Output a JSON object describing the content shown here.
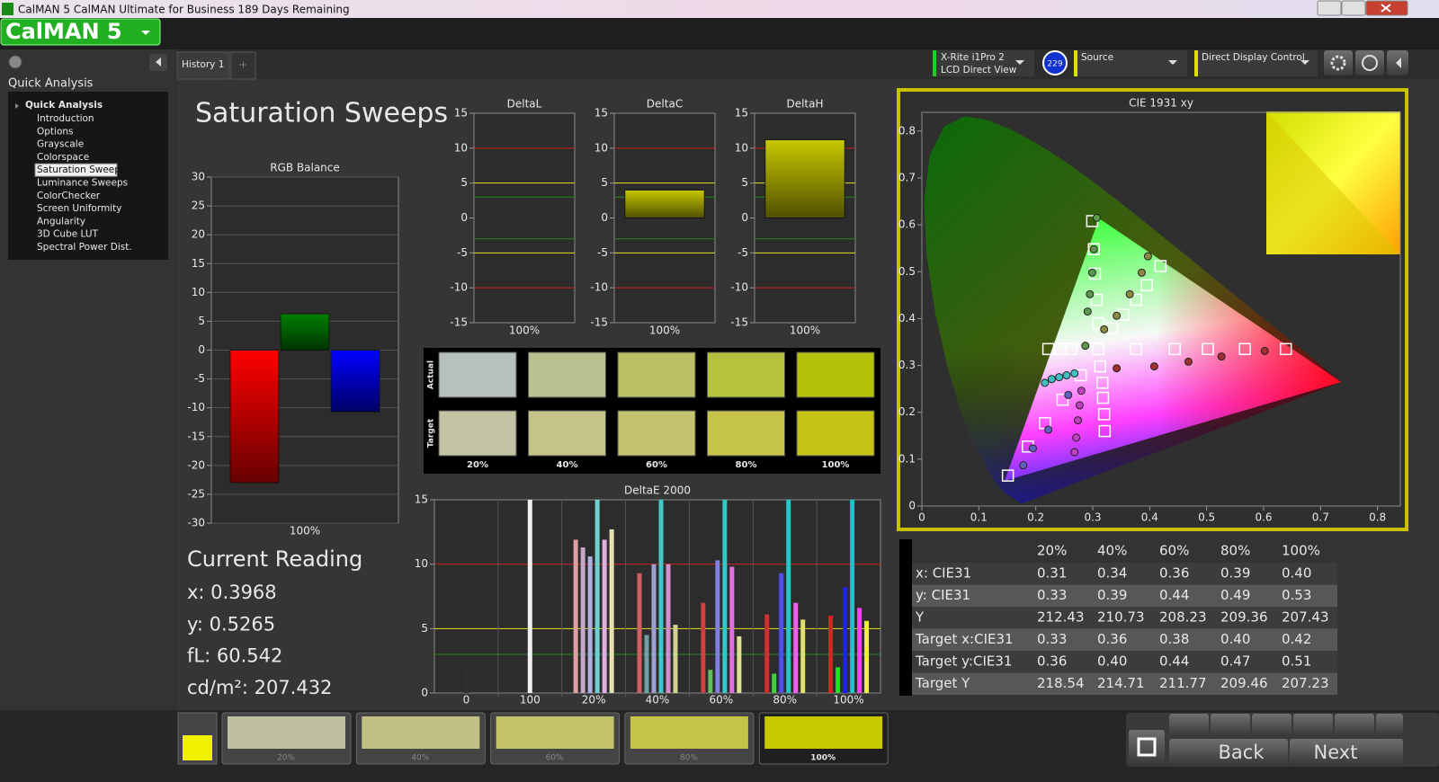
{
  "window": {
    "title": "CalMAN 5 CalMAN Ultimate for Business 189 Days Remaining",
    "logo": "CalMAN 5"
  },
  "sidebar": {
    "heading": "Quick Analysis",
    "tree_root": "Quick Analysis",
    "items": [
      "Introduction",
      "Options",
      "Grayscale",
      "Colorspace",
      "Saturation Sweeps",
      "Luminance Sweeps",
      "ColorChecker",
      "Screen Uniformity",
      "Angularity",
      "3D Cube LUT",
      "Spectral Power Dist."
    ],
    "selected": 4
  },
  "tabs": [
    "History 1"
  ],
  "toolbar": {
    "meter": "X-Rite i1Pro 2",
    "meter_mode": "LCD Direct View",
    "meter_badge": "229",
    "source": "Source",
    "display": "Direct Display Control"
  },
  "page_title": "Saturation Sweeps",
  "chart_data": [
    {
      "type": "bar",
      "title": "RGB Balance",
      "categories": [
        "100%"
      ],
      "series": [
        {
          "color": "#ff0000",
          "values": [
            -23
          ]
        },
        {
          "color": "#008000",
          "values": [
            6.3
          ]
        },
        {
          "color": "#0000ff",
          "values": [
            -10.7
          ]
        }
      ],
      "ylim": [
        -30,
        30
      ],
      "yticks": [
        -30,
        -25,
        -20,
        -15,
        -10,
        -5,
        0,
        5,
        10,
        15,
        20,
        25,
        30
      ],
      "grid": true
    },
    {
      "type": "bar",
      "title": "DeltaL",
      "categories": [
        "100%"
      ],
      "values": [
        0
      ],
      "color": "#c8c800",
      "ylim": [
        -15,
        15
      ],
      "yticks": [
        -15,
        -10,
        -5,
        0,
        5,
        10,
        15
      ],
      "grid": false,
      "ref_lines": [
        {
          "value": 10,
          "color": "#d02020"
        },
        {
          "value": -10,
          "color": "#d02020"
        },
        {
          "value": 5,
          "color": "#e0e020"
        },
        {
          "value": -5,
          "color": "#e0e020"
        },
        {
          "value": 3,
          "color": "#208a20"
        },
        {
          "value": -3,
          "color": "#208a20"
        }
      ]
    },
    {
      "type": "bar",
      "title": "DeltaC",
      "categories": [
        "100%"
      ],
      "values": [
        4
      ],
      "color": "#c8c800",
      "ylim": [
        -15,
        15
      ],
      "yticks": [
        -15,
        -10,
        -5,
        0,
        5,
        10,
        15
      ],
      "grid": false,
      "ref_lines": [
        {
          "value": 10,
          "color": "#d02020"
        },
        {
          "value": -10,
          "color": "#d02020"
        },
        {
          "value": 5,
          "color": "#e0e020"
        },
        {
          "value": -5,
          "color": "#e0e020"
        },
        {
          "value": 3,
          "color": "#208a20"
        },
        {
          "value": -3,
          "color": "#208a20"
        }
      ]
    },
    {
      "type": "bar",
      "title": "DeltaH",
      "categories": [
        "100%"
      ],
      "values": [
        11.2
      ],
      "color": "#c8c800",
      "ylim": [
        -15,
        15
      ],
      "yticks": [
        -15,
        -10,
        -5,
        0,
        5,
        10,
        15
      ],
      "grid": false,
      "ref_lines": [
        {
          "value": 10,
          "color": "#d02020"
        },
        {
          "value": -10,
          "color": "#d02020"
        },
        {
          "value": 5,
          "color": "#e0e020"
        },
        {
          "value": -5,
          "color": "#e0e020"
        },
        {
          "value": 3,
          "color": "#208a20"
        },
        {
          "value": -3,
          "color": "#208a20"
        }
      ]
    },
    {
      "type": "grouped_bar",
      "title": "DeltaE 2000",
      "categories": [
        "0",
        "100",
        "20%",
        "40%",
        "60%",
        "80%",
        "100%"
      ],
      "values": [
        [
          2
        ],
        [
          15
        ],
        [
          11.9,
          11.3,
          10.6,
          15,
          11.9,
          12.7
        ],
        [
          9.3,
          4.5,
          10,
          15,
          10,
          5.3
        ],
        [
          7,
          1.8,
          10.3,
          15,
          9.8,
          4.4
        ],
        [
          6.1,
          1.5,
          9.3,
          15,
          7,
          5.7
        ],
        [
          6,
          2,
          8.2,
          15,
          6.6,
          5.6
        ]
      ],
      "colors": [
        [
          "#303030"
        ],
        [
          "#f0f0f0"
        ],
        [
          "#e0a0a0",
          "#c8a8c8",
          "#b0b0e0",
          "#70d0d0",
          "#e0b0e0",
          "#e8e0b0"
        ],
        [
          "#d06060",
          "#70a0a0",
          "#a0a0d0",
          "#40c8c8",
          "#d090d0",
          "#d0d090"
        ],
        [
          "#d04040",
          "#60c060",
          "#8080e0",
          "#30c8c8",
          "#e070e0",
          "#e0e090"
        ],
        [
          "#d03030",
          "#40d040",
          "#5050f0",
          "#20c8c8",
          "#f060f0",
          "#e0e070"
        ],
        [
          "#e02020",
          "#20e020",
          "#2020ff",
          "#10c8c8",
          "#ff40ff",
          "#f0f040"
        ]
      ],
      "ylim": [
        0,
        15
      ],
      "yticks": [
        0,
        5,
        10,
        15
      ],
      "ref_lines": [
        {
          "value": 10,
          "color": "#d02020"
        },
        {
          "value": 5,
          "color": "#e0e020"
        },
        {
          "value": 3,
          "color": "#208a20"
        }
      ]
    },
    {
      "type": "scatter",
      "title": "CIE 1931 xy",
      "xlim": [
        0,
        0.84
      ],
      "ylim": [
        0,
        0.84
      ],
      "xticks": [
        0,
        0.1,
        0.2,
        0.3,
        0.4,
        0.5,
        0.6,
        0.7,
        0.8
      ],
      "yticks": [
        0,
        0.1,
        0.2,
        0.3,
        0.4,
        0.5,
        0.6,
        0.7,
        0.8
      ],
      "series": [
        {
          "marker": "square",
          "color": "#ffffff",
          "x": [
            0.222,
            0.243,
            0.262,
            0.31,
            0.376,
            0.444,
            0.502,
            0.567,
            0.639,
            0.299,
            0.302,
            0.304,
            0.307,
            0.31,
            0.419,
            0.395,
            0.376,
            0.354,
            0.334,
            0.151,
            0.186,
            0.216,
            0.247,
            0.279,
            0.321,
            0.32,
            0.318,
            0.317,
            0.313
          ],
          "y": [
            0.335,
            0.335,
            0.335,
            0.335,
            0.335,
            0.335,
            0.335,
            0.335,
            0.335,
            0.608,
            0.548,
            0.496,
            0.44,
            0.39,
            0.512,
            0.471,
            0.44,
            0.408,
            0.379,
            0.065,
            0.127,
            0.177,
            0.227,
            0.279,
            0.16,
            0.196,
            0.231,
            0.263,
            0.298
          ]
        },
        {
          "marker": "circle",
          "color": "#5a9a4a",
          "x": [
            0.307,
            0.302,
            0.299,
            0.295,
            0.291,
            0.287
          ],
          "y": [
            0.615,
            0.548,
            0.498,
            0.452,
            0.415,
            0.342
          ]
        },
        {
          "marker": "circle",
          "color": "#8a8a40",
          "x": [
            0.397,
            0.386,
            0.365,
            0.342,
            0.32
          ],
          "y": [
            0.533,
            0.498,
            0.452,
            0.406,
            0.377
          ]
        },
        {
          "marker": "circle",
          "color": "#a03030",
          "x": [
            0.342,
            0.408,
            0.468,
            0.526,
            0.602
          ],
          "y": [
            0.294,
            0.298,
            0.308,
            0.319,
            0.331
          ]
        },
        {
          "marker": "circle",
          "color": "#6060c0",
          "x": [
            0.178,
            0.195,
            0.222,
            0.257
          ],
          "y": [
            0.087,
            0.123,
            0.163,
            0.237
          ]
        },
        {
          "marker": "circle",
          "color": "#c040c0",
          "x": [
            0.268,
            0.271,
            0.274,
            0.277,
            0.28
          ],
          "y": [
            0.115,
            0.146,
            0.183,
            0.215,
            0.246
          ]
        },
        {
          "marker": "circle",
          "color": "#40c0c0",
          "x": [
            0.216,
            0.228,
            0.241,
            0.254,
            0.268
          ],
          "y": [
            0.263,
            0.271,
            0.275,
            0.279,
            0.283
          ]
        }
      ]
    }
  ],
  "swatches": {
    "row_labels": [
      "Actual",
      "Target"
    ],
    "columns": [
      "20%",
      "40%",
      "60%",
      "80%",
      "100%"
    ],
    "actual_colors": [
      "#b8bfbf",
      "#b8c190",
      "#bac064",
      "#b5c23c",
      "#b3c20a"
    ],
    "target_colors": [
      "#c2c3a2",
      "#c3c38a",
      "#c5c46e",
      "#c6c54a",
      "#c5c414"
    ]
  },
  "current_reading": {
    "title": "Current Reading",
    "lines": [
      "x: 0.3968",
      "y: 0.5265",
      "fL: 60.542",
      "cd/m²: 207.432"
    ]
  },
  "table": {
    "columns": [
      "20%",
      "40%",
      "60%",
      "80%",
      "100%"
    ],
    "rows": [
      [
        "x: CIE31",
        "0.31",
        "0.34",
        "0.36",
        "0.39",
        "0.40"
      ],
      [
        "y: CIE31",
        "0.33",
        "0.39",
        "0.44",
        "0.49",
        "0.53"
      ],
      [
        "Y",
        "212.43",
        "210.73",
        "208.23",
        "209.36",
        "207.43"
      ],
      [
        "Target x:CIE31",
        "0.33",
        "0.36",
        "0.38",
        "0.40",
        "0.42"
      ],
      [
        "Target y:CIE31",
        "0.36",
        "0.40",
        "0.44",
        "0.47",
        "0.51"
      ],
      [
        "Target Y",
        "218.54",
        "214.71",
        "211.77",
        "209.46",
        "207.23"
      ]
    ]
  },
  "bottom_bar": {
    "swatch_labels": [
      "20%",
      "40%",
      "60%",
      "80%",
      "100%"
    ],
    "swatch_colors": [
      "#c0c0a0",
      "#c1c186",
      "#c2c26a",
      "#c4c446",
      "#c8c800"
    ],
    "selected": 4,
    "back": "Back",
    "next": "Next"
  }
}
